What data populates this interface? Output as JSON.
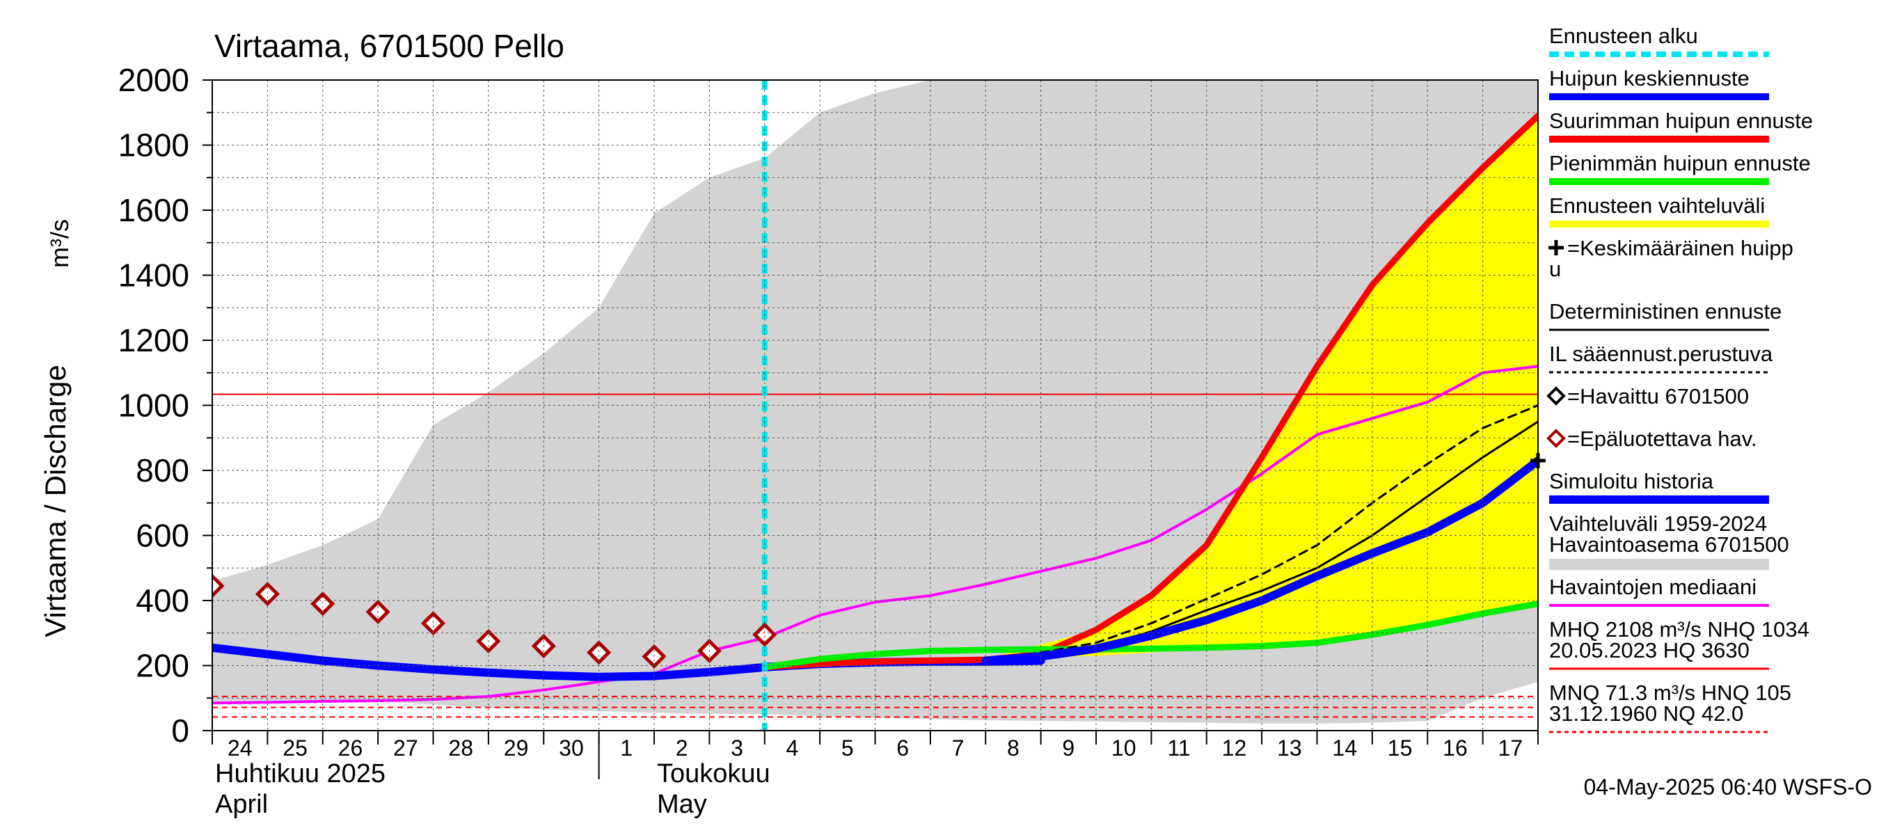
{
  "chart_data": {
    "type": "line",
    "title": "Virtaama, 6701500 Pello",
    "ylabel": "Virtaama / Discharge",
    "yunit": "m³/s",
    "ylim": [
      0,
      2000
    ],
    "yticks": [
      "0",
      "200",
      "400",
      "600",
      "800",
      "1000",
      "1200",
      "1400",
      "1600",
      "1800",
      "2000"
    ],
    "xlim": [
      0,
      24
    ],
    "x_tick_labels": [
      "24",
      "25",
      "26",
      "27",
      "28",
      "29",
      "30",
      "1",
      "2",
      "3",
      "4",
      "5",
      "6",
      "7",
      "8",
      "9",
      "10",
      "11",
      "12",
      "13",
      "14",
      "15",
      "16",
      "17"
    ],
    "month_labels": [
      {
        "line1": "Huhtikuu  2025",
        "line2": "April",
        "x": 0
      },
      {
        "line1": "Toukokuu",
        "line2": "May",
        "x": 8
      }
    ],
    "month_divider_x": 7,
    "forecast_start_x": 10,
    "history_band": {
      "x": [
        0,
        1,
        2,
        3,
        4,
        5,
        6,
        7,
        8,
        9,
        10,
        11,
        12,
        13,
        14,
        15,
        16,
        17,
        18,
        19,
        20,
        21,
        22,
        23,
        24
      ],
      "upper": [
        460,
        510,
        570,
        650,
        940,
        1040,
        1160,
        1300,
        1590,
        1700,
        1760,
        1900,
        1960,
        2000,
        2000,
        2000,
        2000,
        2000,
        2000,
        2000,
        2000,
        2000,
        2000,
        2000,
        2000
      ],
      "lower": [
        90,
        90,
        90,
        90,
        80,
        70,
        65,
        60,
        55,
        52,
        50,
        45,
        40,
        35,
        32,
        30,
        28,
        26,
        24,
        22,
        22,
        24,
        30,
        100,
        150
      ]
    },
    "forecast_band": {
      "x": [
        14,
        15,
        16,
        17,
        18,
        19,
        20,
        21,
        22,
        23,
        24
      ],
      "upper": [
        220,
        265,
        310,
        410,
        570,
        840,
        1120,
        1370,
        1560,
        1730,
        1890
      ],
      "lower": [
        220,
        225,
        230,
        240,
        250,
        255,
        265,
        290,
        320,
        355,
        385
      ]
    },
    "series": [
      {
        "name": "Havaintojen mediaani",
        "color": "#ff00ff",
        "width": 4,
        "x": [
          0,
          1,
          2,
          3,
          4,
          5,
          6,
          7,
          8,
          9,
          10,
          11,
          12,
          13,
          14,
          15,
          16,
          17,
          18,
          19,
          20,
          21,
          22,
          23,
          24
        ],
        "y": [
          85,
          87,
          90,
          92,
          96,
          105,
          125,
          150,
          175,
          245,
          285,
          355,
          395,
          415,
          450,
          490,
          530,
          585,
          680,
          790,
          910,
          960,
          1010,
          1100,
          1120
        ]
      },
      {
        "name": "Simuloitu historia",
        "color": "#0000ff",
        "width": 12,
        "x": [
          0,
          1,
          2,
          3,
          4,
          5,
          6,
          7,
          8,
          9,
          10,
          11,
          12,
          13,
          14,
          15
        ],
        "y": [
          255,
          235,
          215,
          200,
          188,
          178,
          170,
          165,
          168,
          180,
          195,
          205,
          210,
          212,
          212,
          215
        ]
      },
      {
        "name": "Suurimman huipun ennuste",
        "color": "#ff0000",
        "width": 9,
        "x": [
          10,
          11,
          12,
          13,
          14,
          15,
          16,
          17,
          18,
          19,
          20,
          21,
          22,
          23,
          24
        ],
        "y": [
          195,
          205,
          212,
          215,
          218,
          235,
          310,
          415,
          570,
          840,
          1120,
          1370,
          1560,
          1730,
          1890
        ]
      },
      {
        "name": "Pienimmän huipun ennuste",
        "color": "#00ee00",
        "width": 9,
        "x": [
          10,
          11,
          12,
          13,
          14,
          15,
          16,
          17,
          18,
          19,
          20,
          21,
          22,
          23,
          24
        ],
        "y": [
          195,
          220,
          235,
          245,
          248,
          250,
          250,
          252,
          255,
          260,
          270,
          295,
          325,
          360,
          390
        ]
      },
      {
        "name": "IL sääennust.perustuva",
        "color": "#000000",
        "width": 3,
        "dash": "12,8",
        "x": [
          14,
          15,
          16,
          17,
          18,
          19,
          20,
          21,
          22,
          23,
          24
        ],
        "y": [
          215,
          240,
          270,
          330,
          405,
          480,
          570,
          700,
          820,
          930,
          1000
        ]
      },
      {
        "name": "Deterministinen ennuste",
        "color": "#000000",
        "width": 3,
        "x": [
          14,
          15,
          16,
          17,
          18,
          19,
          20,
          21,
          22,
          23,
          24
        ],
        "y": [
          215,
          230,
          255,
          305,
          370,
          430,
          500,
          600,
          720,
          840,
          950
        ]
      },
      {
        "name": "Huipun keskiennuste",
        "color": "#0000ff",
        "width": 12,
        "x": [
          14,
          15,
          16,
          17,
          18,
          19,
          20,
          21,
          22,
          23,
          24
        ],
        "y": [
          215,
          228,
          252,
          292,
          340,
          400,
          475,
          545,
          610,
          700,
          830
        ]
      }
    ],
    "observed_unreliable": {
      "name": "Epäluotettava hav.",
      "color": "#aa0000",
      "x": [
        0,
        1,
        2,
        3,
        4,
        5,
        6,
        7,
        8,
        9,
        10
      ],
      "y": [
        445,
        420,
        390,
        365,
        330,
        275,
        260,
        240,
        228,
        245,
        295
      ]
    },
    "mean_peak_marker": {
      "x": 24,
      "y": 830
    },
    "reference_lines": [
      {
        "name": "NHQ",
        "value": 1034,
        "color": "#ff0000",
        "dash": null
      },
      {
        "name": "HNQ",
        "value": 105,
        "color": "#ff0000",
        "dash": "8,6"
      },
      {
        "name": "MNQ",
        "value": 71.3,
        "color": "#ff0000",
        "dash": "8,6"
      },
      {
        "name": "NQ",
        "value": 42.0,
        "color": "#ff0000",
        "dash": "8,6"
      }
    ]
  },
  "legend": {
    "items": [
      {
        "label": "Ennusteen alku",
        "symbol": "line",
        "color": "#00e5ee",
        "dash": true,
        "width": 8
      },
      {
        "label": "Huipun keskiennuste",
        "symbol": "line",
        "color": "#0000ff",
        "width": 10
      },
      {
        "label": "Suurimman huipun ennuste",
        "symbol": "line",
        "color": "#ff0000",
        "width": 10
      },
      {
        "label": "Pienimmän huipun ennuste",
        "symbol": "line",
        "color": "#00ee00",
        "width": 10
      },
      {
        "label": "Ennusteen vaihteluväli",
        "symbol": "line",
        "color": "#ffff00",
        "width": 10
      },
      {
        "label": "=Keskimääräinen huipp",
        "label2": "u",
        "symbol": "plus",
        "color": "#000000"
      },
      {
        "label": "Deterministinen ennuste",
        "symbol": "line",
        "color": "#000000",
        "width": 3
      },
      {
        "label": "IL sääennust.perustuva",
        "symbol": "line",
        "color": "#000000",
        "dash": true,
        "width": 3
      },
      {
        "label": "=Havaittu 6701500",
        "symbol": "diamond",
        "color": "#000000"
      },
      {
        "label": "=Epäluotettava hav.",
        "symbol": "diamond",
        "color": "#aa0000"
      },
      {
        "label": "Simuloitu historia",
        "symbol": "line",
        "color": "#0000ff",
        "width": 12
      },
      {
        "label": "Vaihteluväli 1959-2024",
        "label2": " Havaintoasema 6701500",
        "symbol": "band",
        "color": "#d3d3d3"
      },
      {
        "label": "Havaintojen mediaani",
        "symbol": "line",
        "color": "#ff00ff",
        "width": 4
      },
      {
        "label": "MHQ 2108 m³/s NHQ 1034",
        "label2": "20.05.2023 HQ 3630",
        "symbol": "line",
        "color": "#ff0000",
        "width": 3
      },
      {
        "label": "MNQ 71.3 m³/s HNQ  105",
        "label2": "31.12.1960 NQ 42.0",
        "symbol": "line",
        "color": "#ff0000",
        "dash": true,
        "width": 3
      }
    ]
  },
  "timestamp": "04-May-2025 06:40 WSFS-O"
}
